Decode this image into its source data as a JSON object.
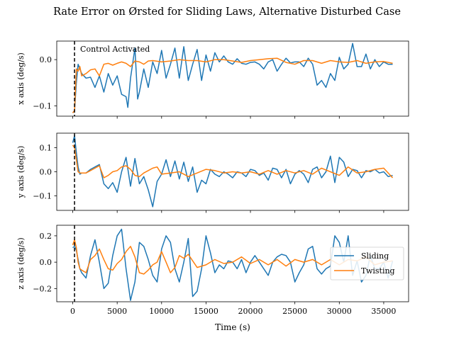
{
  "chart_data": {
    "type": "line",
    "title": "Rate Error on Ørsted for Sliding Laws, Alternative Disturbed Case",
    "xlabel": "Time (s)",
    "xlim": [
      -1800,
      37800
    ],
    "xticks": [
      0,
      5000,
      10000,
      15000,
      20000,
      25000,
      30000,
      35000
    ],
    "xtick_labels": [
      "0",
      "5000",
      "10000",
      "15000",
      "20000",
      "25000",
      "30000",
      "35000"
    ],
    "colors": {
      "Sliding": "#1f77b4",
      "Twisting": "#ff7f0e",
      "marker": "#000000"
    },
    "control_line_x": 200,
    "annotation": "Control Activated",
    "legend": {
      "placement": "center-right",
      "entries": [
        "Sliding",
        "Twisting"
      ]
    },
    "subplots": [
      {
        "ylabel": "x axis (deg/s)",
        "ylim": [
          -0.122,
          0.04
        ],
        "yticks": [
          0.0,
          -0.1
        ],
        "ytick_labels": [
          "0.0",
          "−0.1"
        ],
        "series": [
          {
            "name": "Sliding",
            "x": [
              0,
              200,
              400,
              600,
              800,
              1000,
              1500,
              2000,
              2500,
              3000,
              3500,
              4000,
              4500,
              5000,
              5500,
              6000,
              6200,
              6500,
              7000,
              7300,
              7500,
              8000,
              8500,
              9000,
              9500,
              10000,
              10500,
              11000,
              11500,
              12000,
              12500,
              13000,
              13500,
              14000,
              14500,
              15000,
              15500,
              16000,
              16500,
              17000,
              17500,
              18000,
              18500,
              19000,
              19500,
              20000,
              20500,
              21000,
              21500,
              22000,
              22500,
              23000,
              23500,
              24000,
              24500,
              25000,
              25500,
              26000,
              26500,
              27000,
              27500,
              28000,
              28500,
              29000,
              29500,
              30000,
              30500,
              31000,
              31500,
              32000,
              32500,
              33000,
              33500,
              34000,
              34500,
              35000,
              35500,
              36000
            ],
            "y": [
              -0.115,
              -0.11,
              -0.05,
              -0.01,
              -0.02,
              -0.03,
              -0.04,
              -0.038,
              -0.06,
              -0.035,
              -0.07,
              -0.03,
              -0.055,
              -0.035,
              -0.075,
              -0.08,
              -0.103,
              -0.04,
              0.025,
              -0.085,
              -0.07,
              -0.02,
              -0.06,
              -0.005,
              -0.03,
              0.02,
              -0.04,
              -0.01,
              0.025,
              -0.04,
              0.028,
              -0.045,
              -0.01,
              0.022,
              -0.045,
              0.01,
              -0.025,
              0.015,
              -0.005,
              0.008,
              -0.005,
              -0.01,
              0.002,
              -0.008,
              -0.01,
              -0.006,
              -0.005,
              -0.01,
              -0.02,
              -0.005,
              0.0,
              -0.025,
              -0.01,
              0.003,
              -0.007,
              -0.005,
              -0.005,
              -0.015,
              0.003,
              -0.01,
              -0.055,
              -0.045,
              -0.06,
              -0.03,
              -0.045,
              0.005,
              -0.02,
              -0.01,
              0.035,
              -0.015,
              -0.015,
              0.012,
              -0.02,
              0.0,
              -0.015,
              -0.005,
              -0.01,
              -0.01
            ]
          },
          {
            "name": "Twisting",
            "x": [
              0,
              200,
              400,
              600,
              800,
              1000,
              1500,
              2000,
              2500,
              3000,
              3500,
              4000,
              4500,
              5000,
              5500,
              6000,
              6500,
              7000,
              7500,
              8000,
              8500,
              9000,
              10000,
              11000,
              12000,
              13000,
              14000,
              15000,
              16000,
              17000,
              18000,
              19000,
              20000,
              21000,
              22000,
              23000,
              24000,
              25000,
              26000,
              27000,
              28000,
              29000,
              30000,
              31000,
              32000,
              33000,
              34000,
              35000,
              36000
            ],
            "y": [
              -0.115,
              -0.11,
              -0.02,
              -0.025,
              -0.015,
              -0.035,
              -0.03,
              -0.022,
              -0.02,
              -0.035,
              -0.01,
              -0.008,
              -0.012,
              -0.008,
              -0.005,
              -0.008,
              -0.015,
              -0.003,
              -0.005,
              -0.01,
              -0.003,
              -0.002,
              -0.005,
              -0.003,
              0.0,
              -0.002,
              -0.002,
              -0.005,
              0.0,
              0.0,
              -0.003,
              -0.006,
              -0.002,
              0.0,
              0.002,
              0.003,
              -0.006,
              -0.01,
              -0.002,
              -0.002,
              -0.008,
              -0.002,
              -0.005,
              -0.006,
              -0.002,
              -0.008,
              -0.005,
              -0.004,
              -0.008
            ]
          }
        ]
      },
      {
        "ylabel": "y axis (deg/s)",
        "ylim": [
          -0.16,
          0.16
        ],
        "yticks": [
          0.1,
          0.0,
          -0.1
        ],
        "ytick_labels": [
          "0.1",
          "0.0",
          "−0.1"
        ],
        "series": [
          {
            "name": "Sliding",
            "x": [
              0,
              200,
              400,
              600,
              800,
              1000,
              1500,
              2000,
              2500,
              3000,
              3500,
              4000,
              4500,
              5000,
              5500,
              6000,
              6500,
              7000,
              7500,
              8000,
              8500,
              9000,
              9500,
              10000,
              10500,
              11000,
              11500,
              12000,
              12500,
              13000,
              13500,
              14000,
              14500,
              15000,
              15500,
              16000,
              16500,
              17000,
              17500,
              18000,
              18500,
              19000,
              19500,
              20000,
              20500,
              21000,
              21500,
              22000,
              22500,
              23000,
              23500,
              24000,
              24500,
              25000,
              25500,
              26000,
              26500,
              27000,
              27500,
              28000,
              28500,
              29000,
              29500,
              30000,
              30500,
              31000,
              31500,
              32000,
              32500,
              33000,
              33500,
              34000,
              34500,
              35000,
              35500,
              36000
            ],
            "y": [
              0.12,
              0.15,
              0.08,
              0.02,
              -0.01,
              -0.005,
              -0.005,
              0.01,
              0.02,
              0.03,
              -0.05,
              -0.07,
              -0.045,
              -0.085,
              0.0,
              0.06,
              -0.06,
              0.055,
              -0.05,
              -0.02,
              -0.075,
              -0.145,
              -0.04,
              -0.01,
              0.05,
              -0.02,
              0.045,
              -0.03,
              0.04,
              -0.04,
              0.02,
              -0.085,
              -0.035,
              -0.05,
              0.01,
              -0.01,
              -0.02,
              0.0,
              -0.01,
              -0.025,
              0.0,
              -0.005,
              -0.02,
              0.01,
              0.005,
              -0.015,
              -0.005,
              -0.035,
              0.015,
              0.01,
              -0.025,
              0.01,
              -0.05,
              -0.01,
              0.005,
              -0.01,
              -0.045,
              0.01,
              0.02,
              -0.025,
              0.0,
              0.065,
              -0.045,
              0.06,
              0.04,
              -0.02,
              0.01,
              0.005,
              -0.025,
              0.005,
              0.0,
              0.01,
              -0.005,
              0.0,
              -0.02,
              -0.015
            ]
          },
          {
            "name": "Twisting",
            "x": [
              0,
              200,
              400,
              600,
              800,
              1000,
              1500,
              2000,
              2500,
              3000,
              3500,
              4000,
              4500,
              5000,
              5500,
              6000,
              6500,
              7000,
              7500,
              8000,
              8500,
              9000,
              9500,
              10000,
              11000,
              12000,
              13000,
              14000,
              15000,
              16000,
              17000,
              18000,
              19000,
              20000,
              21000,
              22000,
              23000,
              24000,
              25000,
              26000,
              27000,
              28000,
              29000,
              30000,
              31000,
              32000,
              33000,
              34000,
              35000,
              36000
            ],
            "y": [
              0.11,
              0.1,
              0.05,
              0.0,
              -0.005,
              -0.005,
              -0.005,
              0.005,
              0.015,
              0.025,
              -0.025,
              -0.015,
              0.0,
              0.005,
              0.02,
              0.025,
              0.01,
              -0.015,
              -0.02,
              -0.005,
              0.005,
              0.015,
              0.02,
              -0.01,
              -0.005,
              0.0,
              -0.02,
              -0.005,
              0.01,
              0.005,
              -0.005,
              0.0,
              -0.005,
              0.0,
              -0.01,
              0.005,
              -0.01,
              0.005,
              -0.005,
              0.005,
              -0.01,
              0.015,
              0.0,
              -0.015,
              0.02,
              -0.005,
              0.0,
              0.01,
              0.015,
              -0.025
            ]
          }
        ]
      },
      {
        "ylabel": "z axis (deg/s)",
        "ylim": [
          -0.3,
          0.28
        ],
        "yticks": [
          0.2,
          0.0,
          -0.2
        ],
        "ytick_labels": [
          "0.2",
          "0.0",
          "−0.2"
        ],
        "series": [
          {
            "name": "Sliding",
            "x": [
              0,
              200,
              400,
              600,
              800,
              1000,
              1500,
              2000,
              2500,
              3000,
              3500,
              4000,
              4500,
              5000,
              5500,
              6000,
              6500,
              7000,
              7500,
              8000,
              8500,
              9000,
              9500,
              10000,
              10500,
              11000,
              11500,
              12000,
              12500,
              13000,
              13500,
              14000,
              14500,
              15000,
              15500,
              16000,
              16500,
              17000,
              17500,
              18000,
              18500,
              19000,
              19500,
              20000,
              20500,
              21000,
              21500,
              22000,
              22500,
              23000,
              23500,
              24000,
              24500,
              25000,
              25500,
              26000,
              26500,
              27000,
              27500,
              28000,
              28500,
              29000,
              29500,
              30000,
              30500,
              31000,
              31500,
              32000,
              32500,
              33000,
              33500,
              34000,
              34500,
              35000,
              35500,
              36000
            ],
            "y": [
              0.11,
              0.12,
              0.09,
              0.02,
              -0.05,
              -0.08,
              -0.12,
              0.05,
              0.17,
              0.0,
              -0.2,
              -0.16,
              0.05,
              0.2,
              0.25,
              -0.05,
              -0.29,
              -0.15,
              0.15,
              0.12,
              0.02,
              -0.1,
              -0.15,
              0.1,
              0.2,
              0.15,
              -0.05,
              -0.15,
              0.0,
              0.18,
              -0.26,
              -0.22,
              -0.05,
              0.2,
              0.07,
              -0.08,
              -0.02,
              -0.05,
              0.01,
              0.0,
              -0.05,
              0.02,
              -0.08,
              0.0,
              0.05,
              0.0,
              -0.05,
              -0.1,
              0.0,
              0.04,
              0.06,
              0.05,
              0.0,
              -0.15,
              -0.08,
              -0.02,
              0.1,
              0.12,
              -0.05,
              -0.09,
              -0.05,
              -0.03,
              0.2,
              0.15,
              0.0,
              0.2,
              -0.1,
              0.01,
              -0.15,
              -0.1,
              0.05,
              -0.05,
              -0.05,
              0.0,
              -0.12,
              0.01
            ]
          },
          {
            "name": "Twisting",
            "x": [
              0,
              200,
              400,
              600,
              800,
              1000,
              1500,
              2000,
              2500,
              3000,
              3500,
              4000,
              4500,
              5000,
              5500,
              6000,
              6500,
              7000,
              7500,
              8000,
              8500,
              9000,
              9500,
              10000,
              10500,
              11000,
              11500,
              12000,
              12500,
              13000,
              14000,
              15000,
              16000,
              17000,
              18000,
              19000,
              20000,
              21000,
              22000,
              23000,
              24000,
              25000,
              26000,
              27000,
              28000,
              29000,
              30000,
              31000,
              32000,
              33000,
              34000,
              35000,
              36000
            ],
            "y": [
              0.13,
              0.17,
              0.11,
              0.0,
              -0.05,
              -0.06,
              -0.08,
              0.02,
              0.05,
              0.1,
              0.02,
              -0.05,
              -0.06,
              -0.01,
              0.02,
              0.08,
              0.12,
              0.04,
              -0.08,
              -0.09,
              -0.06,
              -0.02,
              0.0,
              0.08,
              0.0,
              -0.08,
              -0.04,
              0.05,
              0.03,
              0.06,
              -0.04,
              -0.02,
              0.02,
              -0.01,
              0.0,
              0.04,
              -0.01,
              0.02,
              -0.02,
              0.02,
              -0.03,
              0.02,
              0.0,
              0.02,
              -0.02,
              0.02,
              -0.02,
              0.02,
              0.01,
              0.04,
              -0.02,
              0.0,
              0.01
            ]
          }
        ]
      }
    ]
  }
}
